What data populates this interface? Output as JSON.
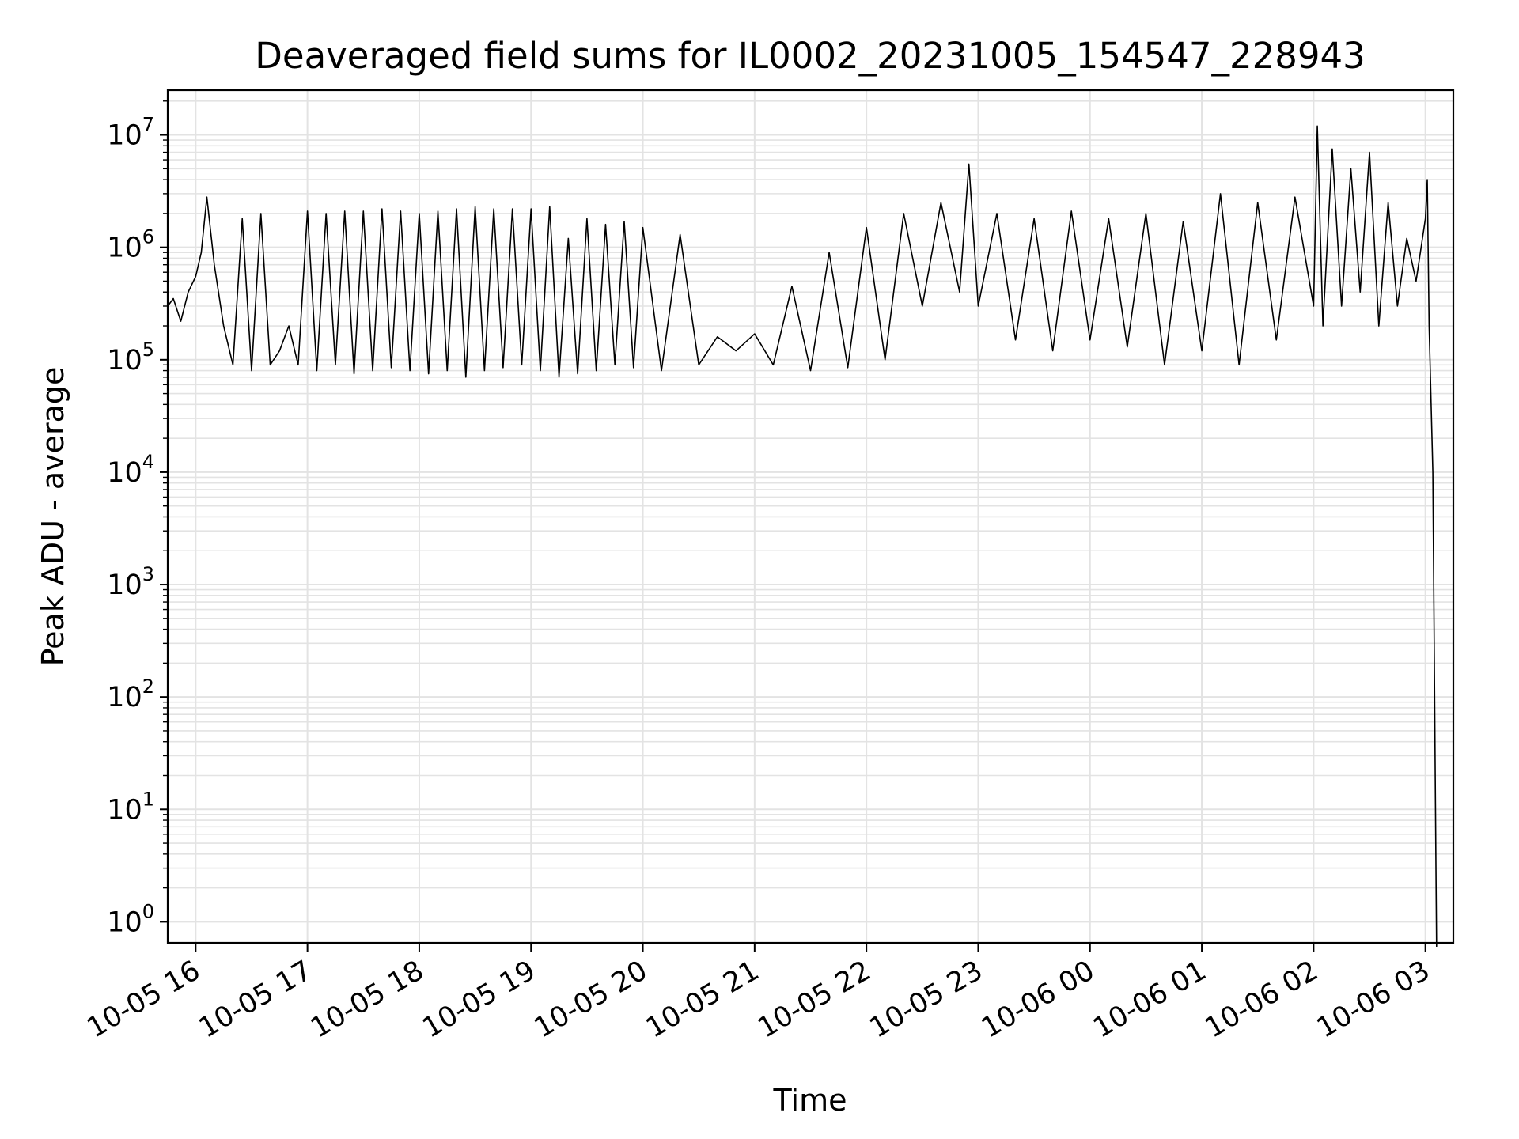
{
  "chart_data": {
    "type": "line",
    "title": "Deaveraged field sums for IL0002_20231005_154547_228943",
    "xlabel": "Time",
    "ylabel": "Peak ADU - average",
    "yscale": "log",
    "ylim": [
      0.65,
      25000000
    ],
    "xlim": [
      "2023-10-05 15:45",
      "2023-10-06 03:15"
    ],
    "grid": "major and minor, light grey",
    "line_color": "#000000",
    "x_ticks": [
      "10-05 16",
      "10-05 17",
      "10-05 18",
      "10-05 19",
      "10-05 20",
      "10-05 21",
      "10-05 22",
      "10-05 23",
      "10-06 00",
      "10-06 01",
      "10-06 02",
      "10-06 03"
    ],
    "y_ticks": [
      {
        "base": "10",
        "exp": "0",
        "value": 1
      },
      {
        "base": "10",
        "exp": "1",
        "value": 10
      },
      {
        "base": "10",
        "exp": "2",
        "value": 100
      },
      {
        "base": "10",
        "exp": "3",
        "value": 1000
      },
      {
        "base": "10",
        "exp": "4",
        "value": 10000
      },
      {
        "base": "10",
        "exp": "5",
        "value": 100000
      },
      {
        "base": "10",
        "exp": "6",
        "value": 1000000
      },
      {
        "base": "10",
        "exp": "7",
        "value": 10000000
      }
    ],
    "series": [
      {
        "x": [
          "2023-10-05 15:45",
          "2023-10-05 15:48",
          "2023-10-05 15:52",
          "2023-10-05 15:56",
          "2023-10-05 16:00",
          "2023-10-05 16:03",
          "2023-10-05 16:06",
          "2023-10-05 16:10",
          "2023-10-05 16:15",
          "2023-10-05 16:20",
          "2023-10-05 16:25",
          "2023-10-05 16:30",
          "2023-10-05 16:35",
          "2023-10-05 16:40",
          "2023-10-05 16:45",
          "2023-10-05 16:50",
          "2023-10-05 16:55",
          "2023-10-05 17:00",
          "2023-10-05 17:05",
          "2023-10-05 17:10",
          "2023-10-05 17:15",
          "2023-10-05 17:20",
          "2023-10-05 17:25",
          "2023-10-05 17:30",
          "2023-10-05 17:35",
          "2023-10-05 17:40",
          "2023-10-05 17:45",
          "2023-10-05 17:50",
          "2023-10-05 17:55",
          "2023-10-05 18:00",
          "2023-10-05 18:05",
          "2023-10-05 18:10",
          "2023-10-05 18:15",
          "2023-10-05 18:20",
          "2023-10-05 18:25",
          "2023-10-05 18:30",
          "2023-10-05 18:35",
          "2023-10-05 18:40",
          "2023-10-05 18:45",
          "2023-10-05 18:50",
          "2023-10-05 18:55",
          "2023-10-05 19:00",
          "2023-10-05 19:05",
          "2023-10-05 19:10",
          "2023-10-05 19:15",
          "2023-10-05 19:20",
          "2023-10-05 19:25",
          "2023-10-05 19:30",
          "2023-10-05 19:35",
          "2023-10-05 19:40",
          "2023-10-05 19:45",
          "2023-10-05 19:50",
          "2023-10-05 19:55",
          "2023-10-05 20:00",
          "2023-10-05 20:10",
          "2023-10-05 20:20",
          "2023-10-05 20:30",
          "2023-10-05 20:40",
          "2023-10-05 20:50",
          "2023-10-05 21:00",
          "2023-10-05 21:10",
          "2023-10-05 21:20",
          "2023-10-05 21:30",
          "2023-10-05 21:40",
          "2023-10-05 21:50",
          "2023-10-05 22:00",
          "2023-10-05 22:10",
          "2023-10-05 22:20",
          "2023-10-05 22:30",
          "2023-10-05 22:40",
          "2023-10-05 22:50",
          "2023-10-05 22:55",
          "2023-10-05 23:00",
          "2023-10-05 23:10",
          "2023-10-05 23:20",
          "2023-10-05 23:30",
          "2023-10-05 23:40",
          "2023-10-05 23:50",
          "2023-10-06 00:00",
          "2023-10-06 00:10",
          "2023-10-06 00:20",
          "2023-10-06 00:30",
          "2023-10-06 00:40",
          "2023-10-06 00:50",
          "2023-10-06 01:00",
          "2023-10-06 01:10",
          "2023-10-06 01:20",
          "2023-10-06 01:30",
          "2023-10-06 01:40",
          "2023-10-06 01:50",
          "2023-10-06 02:00",
          "2023-10-06 02:02",
          "2023-10-06 02:05",
          "2023-10-06 02:10",
          "2023-10-06 02:15",
          "2023-10-06 02:20",
          "2023-10-06 02:25",
          "2023-10-06 02:30",
          "2023-10-06 02:35",
          "2023-10-06 02:40",
          "2023-10-06 02:45",
          "2023-10-06 02:50",
          "2023-10-06 02:55",
          "2023-10-06 03:00",
          "2023-10-06 03:01",
          "2023-10-06 03:02",
          "2023-10-06 03:04",
          "2023-10-06 03:06"
        ],
        "y": [
          300000,
          350000,
          220000,
          400000,
          550000,
          900000,
          2800000,
          700000,
          200000,
          90000,
          1800000,
          80000,
          2000000,
          90000,
          120000,
          200000,
          90000,
          2100000,
          80000,
          2000000,
          90000,
          2100000,
          75000,
          2100000,
          80000,
          2200000,
          85000,
          2100000,
          80000,
          2000000,
          75000,
          2100000,
          80000,
          2200000,
          70000,
          2300000,
          80000,
          2200000,
          85000,
          2200000,
          90000,
          2200000,
          80000,
          2300000,
          70000,
          1200000,
          75000,
          1800000,
          80000,
          1600000,
          90000,
          1700000,
          85000,
          1500000,
          80000,
          1300000,
          90000,
          160000,
          120000,
          170000,
          90000,
          450000,
          80000,
          900000,
          85000,
          1500000,
          100000,
          2000000,
          300000,
          2500000,
          400000,
          5500000,
          300000,
          2000000,
          150000,
          1800000,
          120000,
          2100000,
          150000,
          1800000,
          130000,
          2000000,
          90000,
          1700000,
          120000,
          3000000,
          90000,
          2500000,
          150000,
          2800000,
          300000,
          12000000,
          200000,
          7500000,
          300000,
          5000000,
          400000,
          7000000,
          200000,
          2500000,
          300000,
          1200000,
          500000,
          1800000,
          4000000,
          200000,
          10000,
          0.6
        ]
      }
    ]
  }
}
